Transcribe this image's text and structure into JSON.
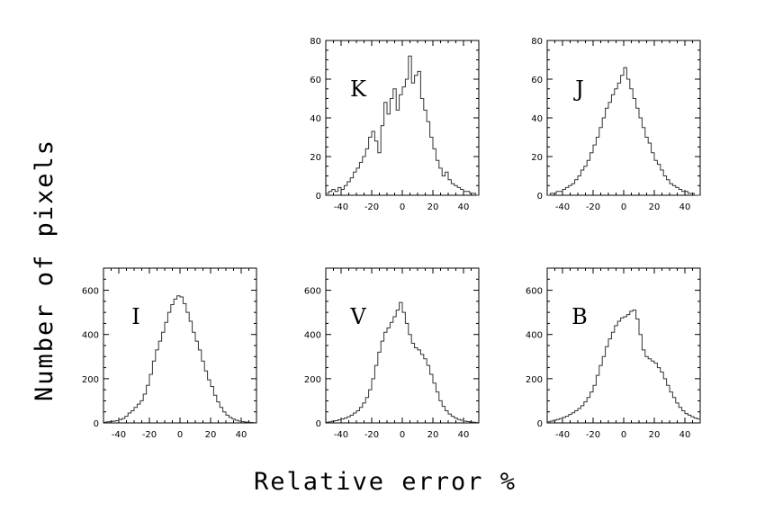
{
  "chart_data": {
    "type": "histogram",
    "xlabel": "Relative error %",
    "ylabel": "Number of pixels",
    "xlim": [
      -50,
      50
    ],
    "xticks": [
      -40,
      -20,
      0,
      20,
      40
    ],
    "bin_width": 2,
    "bin_centers": [
      -49,
      -47,
      -45,
      -43,
      -41,
      -39,
      -37,
      -35,
      -33,
      -31,
      -29,
      -27,
      -25,
      -23,
      -21,
      -19,
      -17,
      -15,
      -13,
      -11,
      -9,
      -7,
      -5,
      -3,
      -1,
      1,
      3,
      5,
      7,
      9,
      11,
      13,
      15,
      17,
      19,
      21,
      23,
      25,
      27,
      29,
      31,
      33,
      35,
      37,
      39,
      41,
      43,
      45,
      47,
      49
    ],
    "panels": [
      {
        "label": "K",
        "ylim": [
          0,
          80
        ],
        "yticks": [
          0,
          20,
          40,
          60,
          80
        ],
        "values": [
          1,
          2,
          3,
          2,
          4,
          3,
          5,
          7,
          9,
          12,
          14,
          17,
          20,
          24,
          30,
          33,
          28,
          22,
          36,
          48,
          42,
          50,
          55,
          44,
          52,
          56,
          60,
          72,
          58,
          62,
          64,
          50,
          44,
          38,
          30,
          24,
          18,
          14,
          10,
          12,
          8,
          6,
          5,
          4,
          3,
          2,
          2,
          1,
          1,
          0
        ]
      },
      {
        "label": "J",
        "ylim": [
          0,
          80
        ],
        "yticks": [
          0,
          20,
          40,
          60,
          80
        ],
        "values": [
          0,
          1,
          1,
          2,
          2,
          3,
          4,
          5,
          6,
          8,
          10,
          13,
          15,
          18,
          22,
          26,
          30,
          35,
          40,
          45,
          48,
          52,
          55,
          58,
          62,
          66,
          60,
          55,
          50,
          45,
          40,
          35,
          30,
          27,
          22,
          18,
          16,
          13,
          10,
          8,
          6,
          5,
          4,
          3,
          2,
          2,
          1,
          1,
          0,
          0
        ]
      },
      {
        "label": "I",
        "ylim": [
          0,
          700
        ],
        "yticks": [
          0,
          200,
          400,
          600
        ],
        "values": [
          3,
          5,
          6,
          8,
          10,
          15,
          20,
          30,
          45,
          55,
          70,
          85,
          100,
          130,
          170,
          220,
          280,
          330,
          370,
          410,
          455,
          500,
          535,
          560,
          575,
          570,
          540,
          500,
          460,
          410,
          370,
          330,
          280,
          235,
          195,
          165,
          125,
          95,
          70,
          50,
          35,
          25,
          18,
          12,
          8,
          6,
          4,
          3,
          2,
          1
        ]
      },
      {
        "label": "V",
        "ylim": [
          0,
          700
        ],
        "yticks": [
          0,
          200,
          400,
          600
        ],
        "values": [
          3,
          5,
          8,
          10,
          14,
          18,
          22,
          28,
          35,
          45,
          55,
          70,
          90,
          115,
          150,
          200,
          260,
          320,
          370,
          410,
          430,
          455,
          480,
          510,
          545,
          500,
          450,
          400,
          360,
          340,
          330,
          310,
          290,
          260,
          220,
          180,
          140,
          100,
          75,
          55,
          40,
          30,
          22,
          16,
          12,
          8,
          6,
          4,
          3,
          2
        ]
      },
      {
        "label": "B",
        "ylim": [
          0,
          700
        ],
        "yticks": [
          0,
          200,
          400,
          600
        ],
        "values": [
          5,
          8,
          12,
          16,
          20,
          25,
          30,
          38,
          46,
          55,
          65,
          78,
          95,
          115,
          140,
          170,
          215,
          260,
          300,
          345,
          380,
          410,
          440,
          460,
          475,
          480,
          490,
          505,
          510,
          470,
          400,
          330,
          300,
          290,
          280,
          270,
          250,
          230,
          200,
          170,
          140,
          115,
          90,
          70,
          55,
          42,
          35,
          28,
          22,
          18
        ]
      }
    ]
  }
}
